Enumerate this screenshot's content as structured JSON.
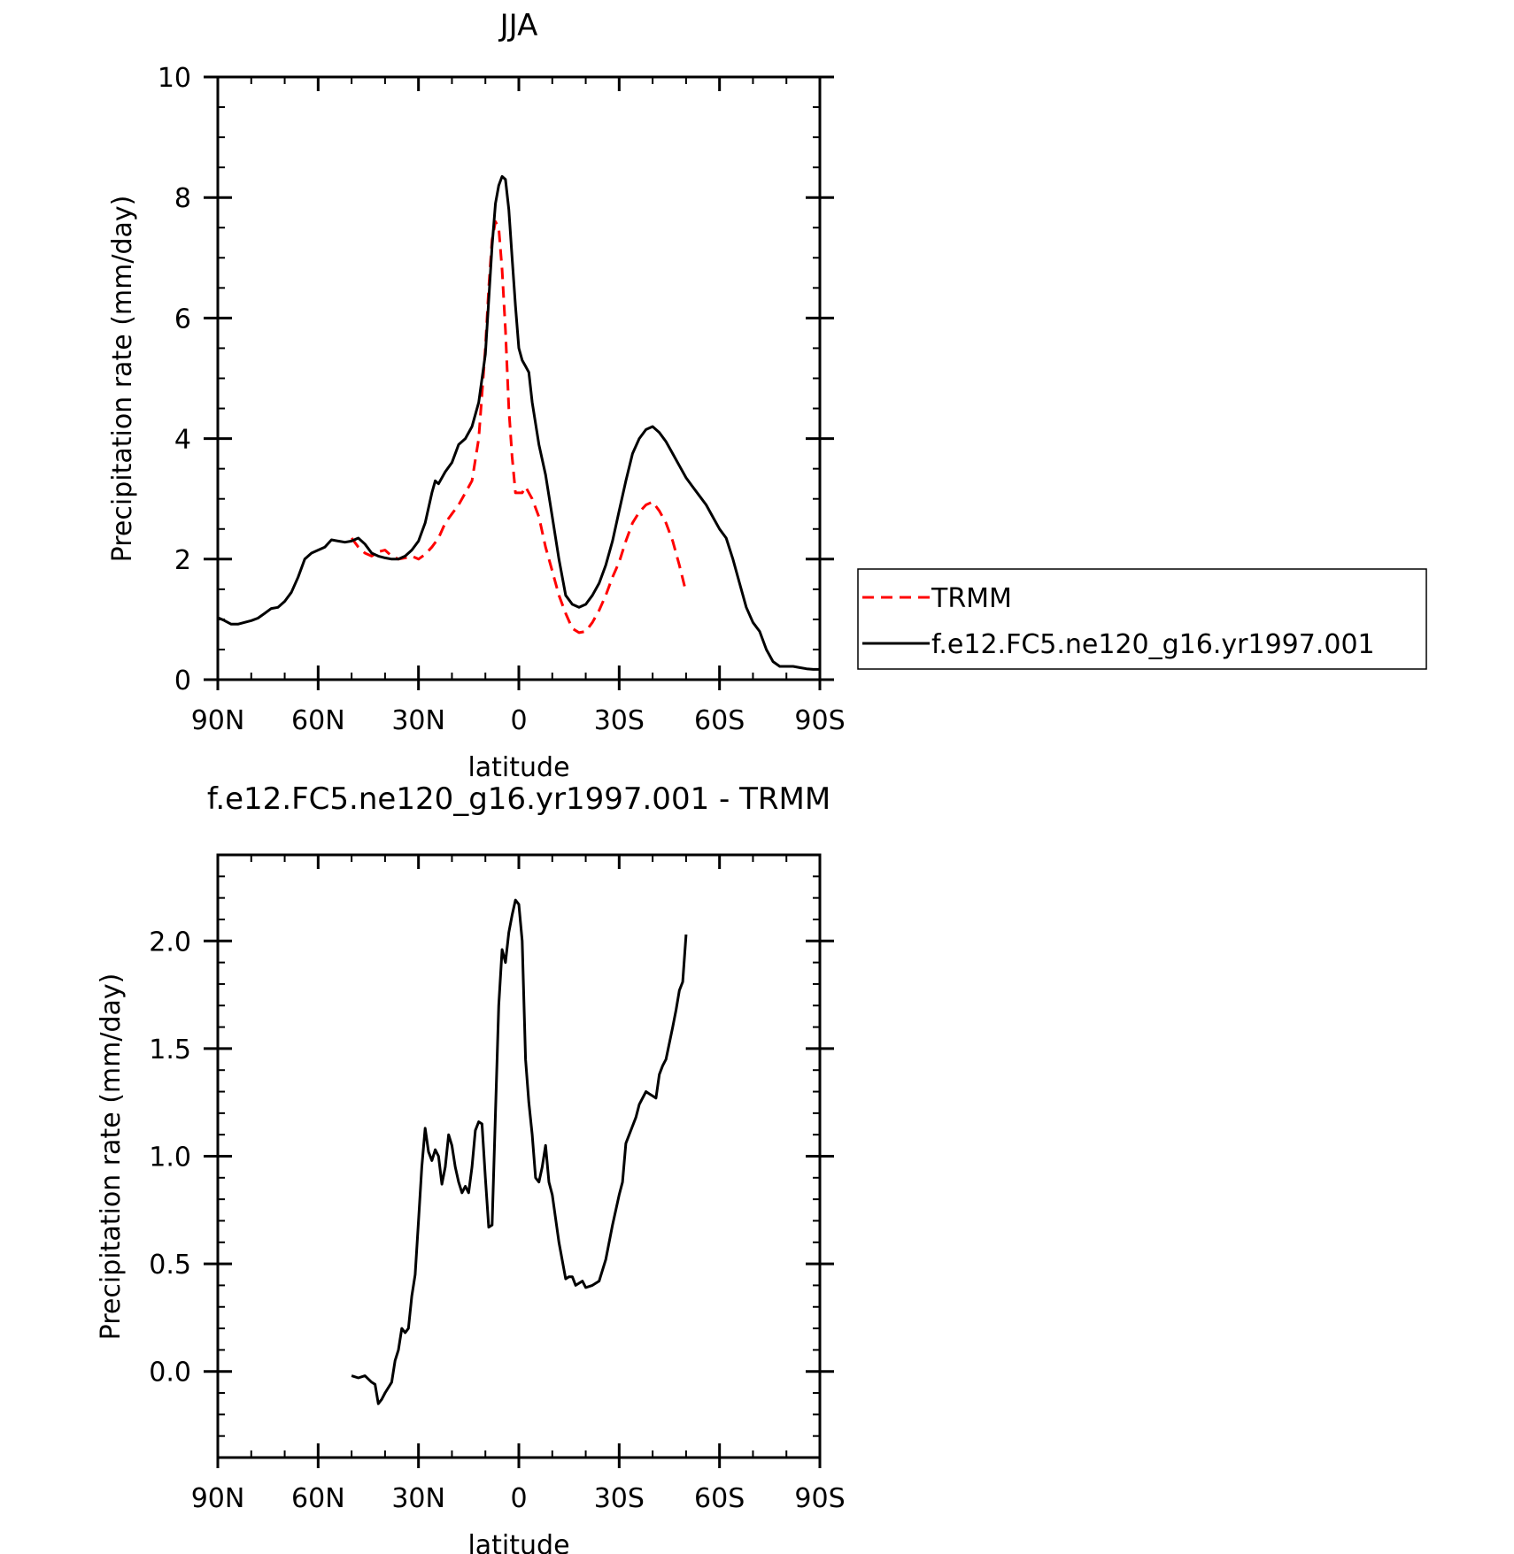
{
  "chart_data": [
    {
      "type": "line",
      "title": "JJA",
      "xlabel": "latitude",
      "ylabel": "Precipitation rate (mm/day)",
      "xlim": [
        90,
        -90
      ],
      "ylim": [
        0,
        10
      ],
      "x_ticks": [
        {
          "value": 90,
          "label": "90N"
        },
        {
          "value": 60,
          "label": "60N"
        },
        {
          "value": 30,
          "label": "30N"
        },
        {
          "value": 0,
          "label": "0"
        },
        {
          "value": -30,
          "label": "30S"
        },
        {
          "value": -60,
          "label": "60S"
        },
        {
          "value": -90,
          "label": "90S"
        }
      ],
      "y_ticks": [
        {
          "value": 0,
          "label": "0"
        },
        {
          "value": 2,
          "label": "2"
        },
        {
          "value": 4,
          "label": "4"
        },
        {
          "value": 6,
          "label": "6"
        },
        {
          "value": 8,
          "label": "8"
        },
        {
          "value": 10,
          "label": "10"
        }
      ],
      "legend_position": "right",
      "series": [
        {
          "name": "TRMM",
          "color": "#ff0000",
          "dash": "dashed",
          "points": [
            [
              50,
              2.35
            ],
            [
              48,
              2.2
            ],
            [
              46,
              2.1
            ],
            [
              44,
              2.05
            ],
            [
              42,
              2.12
            ],
            [
              40,
              2.15
            ],
            [
              38,
              2.05
            ],
            [
              36,
              2.0
            ],
            [
              34,
              2.02
            ],
            [
              32,
              2.05
            ],
            [
              30,
              2.0
            ],
            [
              28,
              2.08
            ],
            [
              26,
              2.2
            ],
            [
              24,
              2.35
            ],
            [
              22,
              2.6
            ],
            [
              20,
              2.75
            ],
            [
              18,
              2.9
            ],
            [
              16,
              3.1
            ],
            [
              14,
              3.3
            ],
            [
              12,
              4.0
            ],
            [
              10,
              5.5
            ],
            [
              9,
              6.5
            ],
            [
              8,
              7.3
            ],
            [
              7,
              7.6
            ],
            [
              6,
              7.5
            ],
            [
              5,
              6.8
            ],
            [
              4,
              5.8
            ],
            [
              3,
              4.5
            ],
            [
              2,
              3.7
            ],
            [
              1,
              3.1
            ],
            [
              0,
              3.1
            ],
            [
              -1,
              3.1
            ],
            [
              -2,
              3.2
            ],
            [
              -4,
              3.0
            ],
            [
              -6,
              2.7
            ],
            [
              -8,
              2.2
            ],
            [
              -10,
              1.8
            ],
            [
              -12,
              1.4
            ],
            [
              -14,
              1.1
            ],
            [
              -16,
              0.85
            ],
            [
              -18,
              0.78
            ],
            [
              -20,
              0.8
            ],
            [
              -22,
              0.95
            ],
            [
              -24,
              1.15
            ],
            [
              -26,
              1.4
            ],
            [
              -28,
              1.7
            ],
            [
              -30,
              1.95
            ],
            [
              -32,
              2.3
            ],
            [
              -34,
              2.6
            ],
            [
              -36,
              2.78
            ],
            [
              -38,
              2.9
            ],
            [
              -40,
              2.95
            ],
            [
              -42,
              2.8
            ],
            [
              -44,
              2.6
            ],
            [
              -46,
              2.3
            ],
            [
              -48,
              1.9
            ],
            [
              -50,
              1.45
            ]
          ]
        },
        {
          "name": "f.e12.FC5.ne120_g16.yr1997.001",
          "color": "#000000",
          "dash": "solid",
          "points": [
            [
              90,
              1.03
            ],
            [
              88,
              0.98
            ],
            [
              86,
              0.92
            ],
            [
              84,
              0.92
            ],
            [
              82,
              0.95
            ],
            [
              80,
              0.98
            ],
            [
              78,
              1.02
            ],
            [
              76,
              1.1
            ],
            [
              74,
              1.18
            ],
            [
              72,
              1.2
            ],
            [
              70,
              1.3
            ],
            [
              68,
              1.45
            ],
            [
              66,
              1.7
            ],
            [
              64,
              2.0
            ],
            [
              62,
              2.1
            ],
            [
              60,
              2.15
            ],
            [
              58,
              2.2
            ],
            [
              56,
              2.32
            ],
            [
              54,
              2.3
            ],
            [
              52,
              2.28
            ],
            [
              50,
              2.3
            ],
            [
              48,
              2.35
            ],
            [
              46,
              2.25
            ],
            [
              44,
              2.1
            ],
            [
              42,
              2.05
            ],
            [
              40,
              2.02
            ],
            [
              38,
              2.0
            ],
            [
              36,
              2.0
            ],
            [
              34,
              2.05
            ],
            [
              32,
              2.15
            ],
            [
              30,
              2.3
            ],
            [
              28,
              2.6
            ],
            [
              26,
              3.1
            ],
            [
              25,
              3.3
            ],
            [
              24,
              3.25
            ],
            [
              22,
              3.45
            ],
            [
              20,
              3.6
            ],
            [
              18,
              3.9
            ],
            [
              16,
              4.0
            ],
            [
              14,
              4.2
            ],
            [
              12,
              4.6
            ],
            [
              10,
              5.4
            ],
            [
              9,
              6.3
            ],
            [
              8,
              7.2
            ],
            [
              7,
              7.9
            ],
            [
              6,
              8.2
            ],
            [
              5,
              8.35
            ],
            [
              4,
              8.3
            ],
            [
              3,
              7.8
            ],
            [
              2,
              7.0
            ],
            [
              1,
              6.2
            ],
            [
              0,
              5.5
            ],
            [
              -1,
              5.3
            ],
            [
              -2,
              5.2
            ],
            [
              -3,
              5.1
            ],
            [
              -4,
              4.6
            ],
            [
              -6,
              3.9
            ],
            [
              -8,
              3.4
            ],
            [
              -10,
              2.7
            ],
            [
              -12,
              2.0
            ],
            [
              -14,
              1.4
            ],
            [
              -16,
              1.25
            ],
            [
              -18,
              1.2
            ],
            [
              -20,
              1.25
            ],
            [
              -22,
              1.4
            ],
            [
              -24,
              1.6
            ],
            [
              -26,
              1.9
            ],
            [
              -28,
              2.3
            ],
            [
              -30,
              2.8
            ],
            [
              -32,
              3.3
            ],
            [
              -34,
              3.75
            ],
            [
              -36,
              4.0
            ],
            [
              -38,
              4.15
            ],
            [
              -40,
              4.2
            ],
            [
              -42,
              4.1
            ],
            [
              -44,
              3.95
            ],
            [
              -46,
              3.75
            ],
            [
              -48,
              3.55
            ],
            [
              -50,
              3.35
            ],
            [
              -52,
              3.2
            ],
            [
              -54,
              3.05
            ],
            [
              -56,
              2.9
            ],
            [
              -58,
              2.7
            ],
            [
              -60,
              2.5
            ],
            [
              -62,
              2.35
            ],
            [
              -64,
              2.0
            ],
            [
              -66,
              1.6
            ],
            [
              -68,
              1.2
            ],
            [
              -70,
              0.95
            ],
            [
              -72,
              0.8
            ],
            [
              -74,
              0.5
            ],
            [
              -76,
              0.3
            ],
            [
              -78,
              0.22
            ],
            [
              -80,
              0.22
            ],
            [
              -82,
              0.22
            ],
            [
              -84,
              0.2
            ],
            [
              -86,
              0.18
            ],
            [
              -88,
              0.17
            ],
            [
              -90,
              0.17
            ]
          ]
        }
      ]
    },
    {
      "type": "line",
      "title": "f.e12.FC5.ne120_g16.yr1997.001 - TRMM",
      "xlabel": "latitude",
      "ylabel": "Precipitation rate (mm/day)",
      "xlim": [
        90,
        -90
      ],
      "ylim": [
        -0.4,
        2.4
      ],
      "x_ticks": [
        {
          "value": 90,
          "label": "90N"
        },
        {
          "value": 60,
          "label": "60N"
        },
        {
          "value": 30,
          "label": "30N"
        },
        {
          "value": 0,
          "label": "0"
        },
        {
          "value": -30,
          "label": "30S"
        },
        {
          "value": -60,
          "label": "60S"
        },
        {
          "value": -90,
          "label": "90S"
        }
      ],
      "y_ticks": [
        {
          "value": 0.0,
          "label": "0.0"
        },
        {
          "value": 0.5,
          "label": "0.5"
        },
        {
          "value": 1.0,
          "label": "1.0"
        },
        {
          "value": 1.5,
          "label": "1.5"
        },
        {
          "value": 2.0,
          "label": "2.0"
        }
      ],
      "series": [
        {
          "color": "#000000",
          "dash": "solid",
          "points": [
            [
              50,
              -0.02
            ],
            [
              48,
              -0.03
            ],
            [
              46,
              -0.02
            ],
            [
              44,
              -0.05
            ],
            [
              43,
              -0.06
            ],
            [
              42,
              -0.15
            ],
            [
              41,
              -0.13
            ],
            [
              40,
              -0.1
            ],
            [
              38,
              -0.05
            ],
            [
              37,
              0.05
            ],
            [
              36,
              0.1
            ],
            [
              35,
              0.2
            ],
            [
              34,
              0.18
            ],
            [
              33,
              0.2
            ],
            [
              32,
              0.35
            ],
            [
              31,
              0.45
            ],
            [
              30,
              0.7
            ],
            [
              29,
              0.95
            ],
            [
              28,
              1.13
            ],
            [
              27,
              1.02
            ],
            [
              26,
              0.98
            ],
            [
              25,
              1.03
            ],
            [
              24,
              1.0
            ],
            [
              23,
              0.87
            ],
            [
              22,
              0.95
            ],
            [
              21,
              1.1
            ],
            [
              20,
              1.05
            ],
            [
              19,
              0.95
            ],
            [
              18,
              0.88
            ],
            [
              17,
              0.83
            ],
            [
              16,
              0.86
            ],
            [
              15,
              0.83
            ],
            [
              14,
              0.95
            ],
            [
              13,
              1.12
            ],
            [
              12,
              1.16
            ],
            [
              11,
              1.15
            ],
            [
              10,
              0.9
            ],
            [
              9,
              0.67
            ],
            [
              8,
              0.68
            ],
            [
              7,
              1.2
            ],
            [
              6,
              1.7
            ],
            [
              5,
              1.96
            ],
            [
              4,
              1.9
            ],
            [
              3,
              2.04
            ],
            [
              2,
              2.12
            ],
            [
              1,
              2.19
            ],
            [
              0,
              2.17
            ],
            [
              -1,
              2.0
            ],
            [
              -2,
              1.45
            ],
            [
              -3,
              1.25
            ],
            [
              -4,
              1.1
            ],
            [
              -5,
              0.9
            ],
            [
              -6,
              0.88
            ],
            [
              -7,
              0.95
            ],
            [
              -8,
              1.05
            ],
            [
              -9,
              0.88
            ],
            [
              -10,
              0.82
            ],
            [
              -12,
              0.6
            ],
            [
              -14,
              0.43
            ],
            [
              -15,
              0.44
            ],
            [
              -16,
              0.44
            ],
            [
              -17,
              0.4
            ],
            [
              -18,
              0.41
            ],
            [
              -19,
              0.42
            ],
            [
              -20,
              0.39
            ],
            [
              -22,
              0.4
            ],
            [
              -24,
              0.42
            ],
            [
              -26,
              0.52
            ],
            [
              -28,
              0.68
            ],
            [
              -30,
              0.82
            ],
            [
              -31,
              0.88
            ],
            [
              -32,
              1.06
            ],
            [
              -34,
              1.14
            ],
            [
              -35,
              1.18
            ],
            [
              -36,
              1.24
            ],
            [
              -38,
              1.3
            ],
            [
              -39,
              1.29
            ],
            [
              -40,
              1.28
            ],
            [
              -41,
              1.27
            ],
            [
              -42,
              1.38
            ],
            [
              -43,
              1.42
            ],
            [
              -44,
              1.45
            ],
            [
              -46,
              1.6
            ],
            [
              -47,
              1.68
            ],
            [
              -48,
              1.77
            ],
            [
              -49,
              1.81
            ],
            [
              -50,
              2.03
            ]
          ]
        }
      ]
    }
  ]
}
